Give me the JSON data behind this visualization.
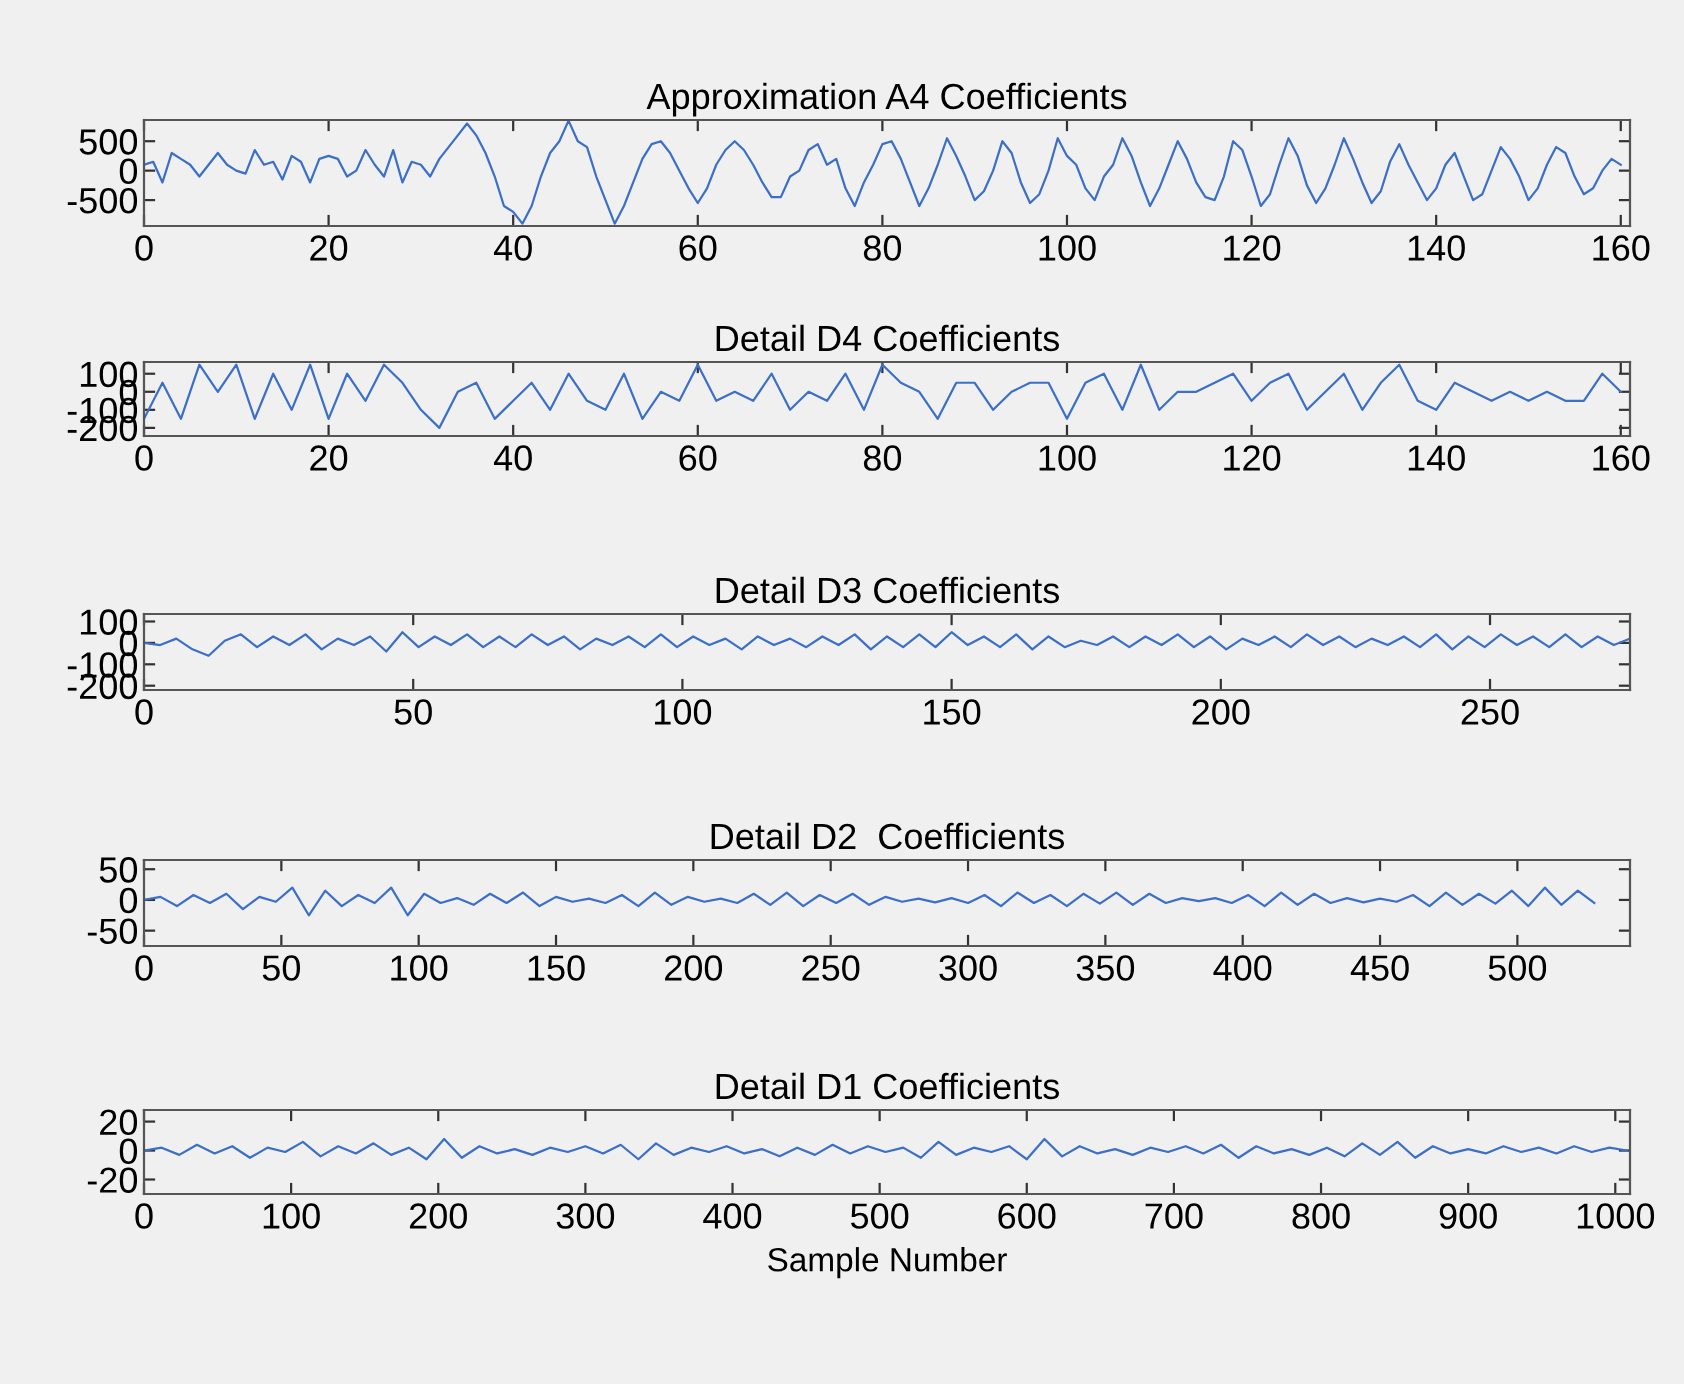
{
  "chart_data": [
    {
      "type": "line",
      "title": "Approximation A4 Coefficients",
      "color": "#3b6fc8",
      "xlim": [
        0,
        161
      ],
      "ylim": [
        -940,
        860
      ],
      "xticks": [
        0,
        20,
        40,
        60,
        80,
        100,
        120,
        140,
        160
      ],
      "yticks": [
        500,
        0,
        -500
      ],
      "grid": false,
      "x": [
        0,
        1,
        2,
        3,
        4,
        5,
        6,
        7,
        8,
        9,
        10,
        11,
        12,
        13,
        14,
        15,
        16,
        17,
        18,
        19,
        20,
        21,
        22,
        23,
        24,
        25,
        26,
        27,
        28,
        29,
        30,
        31,
        32,
        33,
        34,
        35,
        36,
        37,
        38,
        39,
        40,
        41,
        42,
        43,
        44,
        45,
        46,
        47,
        48,
        49,
        50,
        51,
        52,
        53,
        54,
        55,
        56,
        57,
        58,
        59,
        60,
        61,
        62,
        63,
        64,
        65,
        66,
        67,
        68,
        69,
        70,
        71,
        72,
        73,
        74,
        75,
        76,
        77,
        78,
        79,
        80,
        81,
        82,
        83,
        84,
        85,
        86,
        87,
        88,
        89,
        90,
        91,
        92,
        93,
        94,
        95,
        96,
        97,
        98,
        99,
        100,
        101,
        102,
        103,
        104,
        105,
        106,
        107,
        108,
        109,
        110,
        111,
        112,
        113,
        114,
        115,
        116,
        117,
        118,
        119,
        120,
        121,
        122,
        123,
        124,
        125,
        126,
        127,
        128,
        129,
        130,
        131,
        132,
        133,
        134,
        135,
        136,
        137,
        138,
        139,
        140,
        141,
        142,
        143,
        144,
        145,
        146,
        147,
        148,
        149,
        150,
        151,
        152,
        153,
        154,
        155,
        156,
        157,
        158,
        159,
        160
      ],
      "values": [
        100,
        150,
        -200,
        300,
        200,
        100,
        -100,
        100,
        300,
        100,
        0,
        -50,
        350,
        100,
        150,
        -150,
        250,
        150,
        -200,
        200,
        250,
        200,
        -100,
        0,
        350,
        100,
        -100,
        350,
        -200,
        150,
        100,
        -100,
        200,
        400,
        600,
        800,
        600,
        300,
        -100,
        -600,
        -700,
        -900,
        -600,
        -100,
        300,
        500,
        850,
        500,
        400,
        -100,
        -500,
        -900,
        -600,
        -200,
        200,
        450,
        500,
        300,
        0,
        -300,
        -550,
        -300,
        100,
        350,
        500,
        350,
        100,
        -200,
        -450,
        -450,
        -100,
        0,
        350,
        450,
        100,
        200,
        -300,
        -600,
        -200,
        100,
        450,
        500,
        200,
        -200,
        -600,
        -300,
        100,
        550,
        250,
        -100,
        -500,
        -350,
        0,
        500,
        300,
        -200,
        -550,
        -400,
        0,
        550,
        250,
        100,
        -300,
        -500,
        -100,
        100,
        550,
        250,
        -200,
        -600,
        -300,
        100,
        500,
        200,
        -200,
        -450,
        -500,
        -100,
        500,
        350,
        -100,
        -600,
        -400,
        100,
        550,
        250,
        -250,
        -550,
        -300,
        100,
        550,
        200,
        -200,
        -550,
        -350,
        150,
        450,
        100,
        -200,
        -500,
        -300,
        100,
        300,
        -100,
        -500,
        -400,
        0,
        400,
        200,
        -100,
        -500,
        -300,
        100,
        400,
        300,
        -100,
        -400,
        -300,
        0,
        200,
        100
      ]
    },
    {
      "type": "line",
      "title": "Detail D4 Coefficients",
      "color": "#3b6fc8",
      "xlim": [
        0,
        161
      ],
      "ylim": [
        -245,
        165
      ],
      "xticks": [
        0,
        20,
        40,
        60,
        80,
        100,
        120,
        140,
        160
      ],
      "yticks": [
        100,
        0,
        -100,
        -200
      ],
      "grid": false,
      "x": [
        0,
        2,
        4,
        6,
        8,
        10,
        12,
        14,
        16,
        18,
        20,
        22,
        24,
        26,
        28,
        30,
        32,
        34,
        36,
        38,
        40,
        42,
        44,
        46,
        48,
        50,
        52,
        54,
        56,
        58,
        60,
        62,
        64,
        66,
        68,
        70,
        72,
        74,
        76,
        78,
        80,
        82,
        84,
        86,
        88,
        90,
        92,
        94,
        96,
        98,
        100,
        102,
        104,
        106,
        108,
        110,
        112,
        114,
        116,
        118,
        120,
        122,
        124,
        126,
        128,
        130,
        132,
        134,
        136,
        138,
        140,
        142,
        144,
        146,
        148,
        150,
        152,
        154,
        156,
        158,
        160
      ],
      "values": [
        -150,
        50,
        -150,
        150,
        0,
        150,
        -150,
        100,
        -100,
        150,
        -150,
        100,
        -50,
        150,
        50,
        -100,
        -200,
        0,
        50,
        -150,
        -50,
        50,
        -100,
        100,
        -50,
        -100,
        100,
        -150,
        0,
        -50,
        150,
        -50,
        0,
        -50,
        100,
        -100,
        0,
        -50,
        100,
        -100,
        150,
        50,
        0,
        -150,
        50,
        50,
        -100,
        0,
        50,
        50,
        -150,
        50,
        100,
        -100,
        150,
        -100,
        0,
        0,
        50,
        100,
        -50,
        50,
        100,
        -100,
        0,
        100,
        -100,
        50,
        150,
        -50,
        -100,
        50,
        0,
        -50,
        0,
        -50,
        0,
        -50,
        -50,
        100,
        0
      ]
    },
    {
      "type": "line",
      "title": "Detail D3 Coefficients",
      "color": "#3b6fc8",
      "xlim": [
        0,
        276
      ],
      "ylim": [
        -220,
        135
      ],
      "xticks": [
        0,
        50,
        100,
        150,
        200,
        250
      ],
      "yticks": [
        100,
        0,
        -100,
        -200
      ],
      "grid": false,
      "x": [
        0,
        3,
        6,
        9,
        12,
        15,
        18,
        21,
        24,
        27,
        30,
        33,
        36,
        39,
        42,
        45,
        48,
        51,
        54,
        57,
        60,
        63,
        66,
        69,
        72,
        75,
        78,
        81,
        84,
        87,
        90,
        93,
        96,
        99,
        102,
        105,
        108,
        111,
        114,
        117,
        120,
        123,
        126,
        129,
        132,
        135,
        138,
        141,
        144,
        147,
        150,
        153,
        156,
        159,
        162,
        165,
        168,
        171,
        174,
        177,
        180,
        183,
        186,
        189,
        192,
        195,
        198,
        201,
        204,
        207,
        210,
        213,
        216,
        219,
        222,
        225,
        228,
        231,
        234,
        237,
        240,
        243,
        246,
        249,
        252,
        255,
        258,
        261,
        264,
        267,
        270,
        273,
        276
      ],
      "values": [
        0,
        -10,
        20,
        -30,
        -60,
        10,
        40,
        -20,
        30,
        -10,
        40,
        -30,
        20,
        -10,
        30,
        -40,
        50,
        -20,
        30,
        -10,
        40,
        -20,
        30,
        -20,
        40,
        -10,
        30,
        -30,
        20,
        -10,
        30,
        -20,
        40,
        -20,
        30,
        -10,
        20,
        -30,
        30,
        -10,
        20,
        -20,
        30,
        -10,
        40,
        -30,
        30,
        -20,
        40,
        -20,
        50,
        -10,
        30,
        -20,
        40,
        -30,
        30,
        -20,
        10,
        -10,
        30,
        -20,
        30,
        -10,
        40,
        -20,
        30,
        -30,
        20,
        -10,
        30,
        -20,
        40,
        -10,
        30,
        -20,
        20,
        -10,
        30,
        -20,
        40,
        -30,
        30,
        -20,
        40,
        -10,
        30,
        -20,
        40,
        -20,
        30,
        -10,
        20
      ]
    },
    {
      "type": "line",
      "title": "Detail D2  Coefficients",
      "color": "#3b6fc8",
      "xlim": [
        0,
        541
      ],
      "ylim": [
        -75,
        65
      ],
      "xticks": [
        0,
        50,
        100,
        150,
        200,
        250,
        300,
        350,
        400,
        450,
        500
      ],
      "yticks": [
        50,
        0,
        -50
      ],
      "grid": false,
      "x": [
        0,
        6,
        12,
        18,
        24,
        30,
        36,
        42,
        48,
        54,
        60,
        66,
        72,
        78,
        84,
        90,
        96,
        102,
        108,
        114,
        120,
        126,
        132,
        138,
        144,
        150,
        156,
        162,
        168,
        174,
        180,
        186,
        192,
        198,
        204,
        210,
        216,
        222,
        228,
        234,
        240,
        246,
        252,
        258,
        264,
        270,
        276,
        282,
        288,
        294,
        300,
        306,
        312,
        318,
        324,
        330,
        336,
        342,
        348,
        354,
        360,
        366,
        372,
        378,
        384,
        390,
        396,
        402,
        408,
        414,
        420,
        426,
        432,
        438,
        444,
        450,
        456,
        462,
        468,
        474,
        480,
        486,
        492,
        498,
        504,
        510,
        516,
        522,
        528
      ],
      "values": [
        0,
        5,
        -10,
        8,
        -5,
        10,
        -15,
        5,
        -3,
        20,
        -25,
        15,
        -10,
        8,
        -5,
        20,
        -25,
        10,
        -5,
        3,
        -8,
        10,
        -5,
        12,
        -10,
        5,
        -3,
        2,
        -5,
        8,
        -10,
        12,
        -8,
        5,
        -3,
        2,
        -5,
        10,
        -8,
        12,
        -10,
        8,
        -5,
        10,
        -8,
        5,
        -3,
        2,
        -4,
        3,
        -5,
        8,
        -10,
        12,
        -5,
        8,
        -10,
        10,
        -6,
        12,
        -8,
        10,
        -5,
        3,
        -2,
        3,
        -5,
        8,
        -10,
        12,
        -8,
        10,
        -5,
        3,
        -4,
        2,
        -3,
        8,
        -10,
        12,
        -8,
        10,
        -6,
        15,
        -10,
        20,
        -8,
        15,
        -5
      ]
    },
    {
      "type": "line",
      "title": "Detail D1 Coefficients",
      "xlabel": "Sample Number",
      "color": "#3b6fc8",
      "xlim": [
        0,
        1010
      ],
      "ylim": [
        -30,
        28
      ],
      "xticks": [
        0,
        100,
        200,
        300,
        400,
        500,
        600,
        700,
        800,
        900,
        1000
      ],
      "yticks": [
        20,
        0,
        -20
      ],
      "grid": false,
      "x": [
        0,
        12,
        24,
        36,
        48,
        60,
        72,
        84,
        96,
        108,
        120,
        132,
        144,
        156,
        168,
        180,
        192,
        204,
        216,
        228,
        240,
        252,
        264,
        276,
        288,
        300,
        312,
        324,
        336,
        348,
        360,
        372,
        384,
        396,
        408,
        420,
        432,
        444,
        456,
        468,
        480,
        492,
        504,
        516,
        528,
        540,
        552,
        564,
        576,
        588,
        600,
        612,
        624,
        636,
        648,
        660,
        672,
        684,
        696,
        708,
        720,
        732,
        744,
        756,
        768,
        780,
        792,
        804,
        816,
        828,
        840,
        852,
        864,
        876,
        888,
        900,
        912,
        924,
        936,
        948,
        960,
        972,
        984,
        996,
        1008
      ],
      "values": [
        0,
        2,
        -3,
        4,
        -2,
        3,
        -5,
        2,
        -1,
        6,
        -4,
        3,
        -2,
        5,
        -3,
        2,
        -6,
        8,
        -5,
        3,
        -2,
        1,
        -3,
        2,
        -1,
        3,
        -2,
        4,
        -6,
        5,
        -3,
        2,
        -1,
        3,
        -2,
        1,
        -4,
        2,
        -3,
        4,
        -2,
        3,
        -1,
        2,
        -5,
        6,
        -3,
        2,
        -1,
        3,
        -6,
        8,
        -4,
        3,
        -2,
        1,
        -3,
        2,
        -1,
        3,
        -2,
        4,
        -5,
        3,
        -2,
        1,
        -3,
        2,
        -4,
        5,
        -3,
        6,
        -5,
        3,
        -2,
        1,
        -2,
        3,
        -1,
        2,
        -2,
        3,
        -1,
        2,
        0
      ]
    }
  ]
}
